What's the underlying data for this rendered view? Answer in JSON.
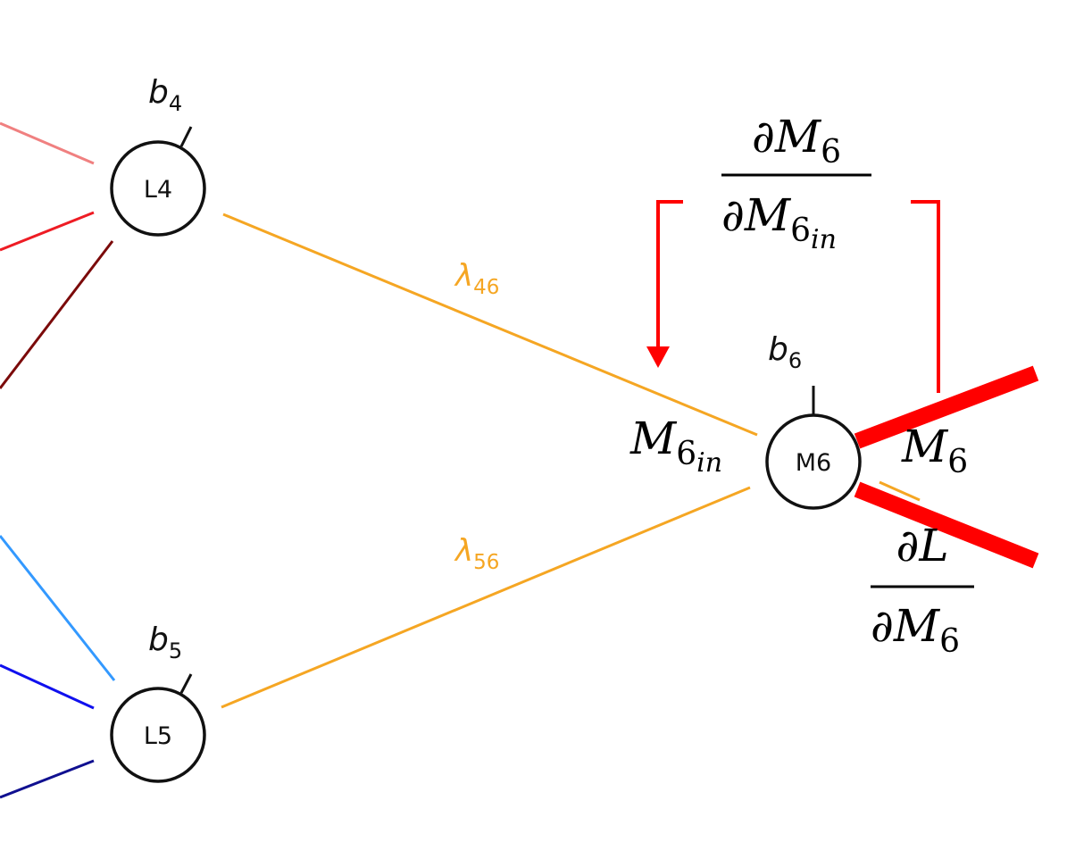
{
  "nodes": {
    "l4": {
      "label": "L4",
      "bias_symbol": "b",
      "bias_index": "4"
    },
    "l5": {
      "label": "L5",
      "bias_symbol": "b",
      "bias_index": "5"
    },
    "m6": {
      "label": "M6",
      "bias_symbol": "b",
      "bias_index": "6"
    }
  },
  "weights": {
    "w46": {
      "symbol": "λ",
      "index": "46"
    },
    "w56": {
      "symbol": "λ",
      "index": "56"
    }
  },
  "annotations": {
    "m6_in": {
      "base": "M",
      "sub": "6",
      "subsub": "in"
    },
    "m6_out": {
      "base": "M",
      "sub": "6"
    },
    "local_derivative": {
      "num_partial": "∂",
      "num_base": "M",
      "num_sub": "6",
      "den_partial": "∂",
      "den_base": "M",
      "den_sub": "6",
      "den_subsub": "in"
    },
    "loss_derivative": {
      "num_partial": "∂",
      "num_base": "L",
      "den_partial": "∂",
      "den_base": "M",
      "den_sub": "6"
    }
  },
  "colors": {
    "orange": "#f5a623",
    "red_marker": "#ff0000",
    "pink": "#f08080",
    "red": "#ee1c24",
    "dark_red": "#7b0a0a",
    "light_blue": "#3399ff",
    "blue": "#1010ee",
    "navy": "#101090"
  }
}
